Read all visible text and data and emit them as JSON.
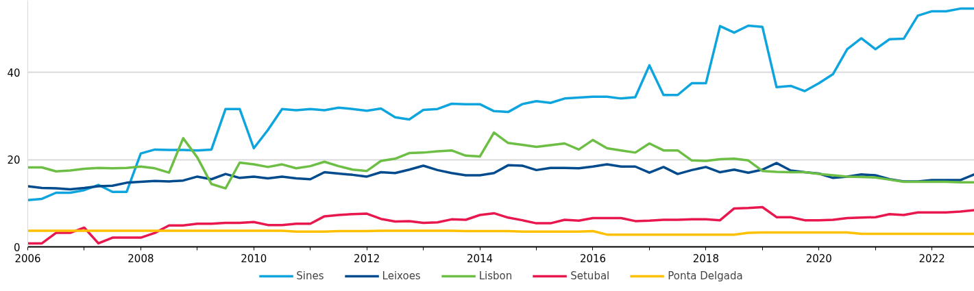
{
  "chart_data": {
    "type": "line",
    "x": [
      2006,
      2006.25,
      2006.5,
      2006.75,
      2007,
      2007.25,
      2007.5,
      2007.75,
      2008,
      2008.25,
      2008.5,
      2008.75,
      2009,
      2009.25,
      2009.5,
      2009.75,
      2010,
      2010.25,
      2010.5,
      2010.75,
      2011,
      2011.25,
      2011.5,
      2011.75,
      2012,
      2012.25,
      2012.5,
      2012.75,
      2013,
      2013.25,
      2013.5,
      2013.75,
      2014,
      2014.25,
      2014.5,
      2014.75,
      2015,
      2015.25,
      2015.5,
      2015.75,
      2016,
      2016.25,
      2016.5,
      2016.75,
      2017,
      2017.25,
      2017.5,
      2017.75,
      2018,
      2018.25,
      2018.5,
      2018.75,
      2019,
      2019.25,
      2019.5,
      2019.75,
      2020,
      2020.25,
      2020.5,
      2020.75,
      2021,
      2021.25,
      2021.5,
      2021.75,
      2022,
      2022.25,
      2022.5,
      2022.75
    ],
    "series": [
      {
        "name": "Sines",
        "color": "#0ea5de",
        "values": [
          10.7,
          11.0,
          12.4,
          12.4,
          13.0,
          14.2,
          12.6,
          12.6,
          21.4,
          22.3,
          22.2,
          22.2,
          22.1,
          22.3,
          31.6,
          31.6,
          22.6,
          26.8,
          31.6,
          31.3,
          31.6,
          31.3,
          31.9,
          31.6,
          31.2,
          31.7,
          29.7,
          29.2,
          31.4,
          31.6,
          32.8,
          32.7,
          32.7,
          31.1,
          30.9,
          32.7,
          33.4,
          33.0,
          34.0,
          34.2,
          34.4,
          34.4,
          34.0,
          34.3,
          41.6,
          34.8,
          34.8,
          37.5,
          37.5,
          50.6,
          49.1,
          50.7,
          50.4,
          36.6,
          36.9,
          35.7,
          37.5,
          39.6,
          45.3,
          47.8,
          45.3,
          47.6,
          47.7,
          53.0,
          54.0,
          54.0,
          54.6,
          54.6
        ]
      },
      {
        "name": "Leixoes",
        "color": "#004b8d",
        "values": [
          13.9,
          13.5,
          13.4,
          13.2,
          13.5,
          13.9,
          14.0,
          14.7,
          14.9,
          15.1,
          15.0,
          15.2,
          16.1,
          15.5,
          16.7,
          15.8,
          16.1,
          15.7,
          16.1,
          15.7,
          15.5,
          17.1,
          16.8,
          16.5,
          16.1,
          17.1,
          16.9,
          17.7,
          18.6,
          17.6,
          16.9,
          16.4,
          16.4,
          16.9,
          18.7,
          18.6,
          17.6,
          18.1,
          18.1,
          18.0,
          18.4,
          18.9,
          18.4,
          18.4,
          17.0,
          18.3,
          16.7,
          17.6,
          18.3,
          17.1,
          17.7,
          17.0,
          17.7,
          19.2,
          17.5,
          17.1,
          16.8,
          15.8,
          16.1,
          16.6,
          16.4,
          15.5,
          15.0,
          15.0,
          15.3,
          15.3,
          15.3,
          16.6
        ]
      },
      {
        "name": "Lisbon",
        "color": "#6cbe45",
        "values": [
          18.2,
          18.2,
          17.3,
          17.5,
          17.9,
          18.1,
          18.0,
          18.1,
          18.4,
          18.0,
          17.0,
          24.9,
          20.5,
          14.4,
          13.4,
          19.3,
          18.9,
          18.3,
          18.9,
          18.0,
          18.5,
          19.5,
          18.5,
          17.7,
          17.4,
          19.7,
          20.2,
          21.5,
          21.6,
          21.9,
          22.1,
          20.9,
          20.7,
          26.2,
          23.8,
          23.4,
          22.9,
          23.3,
          23.7,
          22.3,
          24.5,
          22.6,
          22.1,
          21.6,
          23.7,
          22.1,
          22.1,
          19.8,
          19.7,
          20.1,
          20.2,
          19.8,
          17.4,
          17.2,
          17.1,
          17.1,
          16.7,
          16.4,
          16.1,
          16.0,
          15.9,
          15.4,
          14.9,
          14.9,
          14.9,
          14.9,
          14.8,
          14.8
        ]
      },
      {
        "name": "Setubal",
        "color": "#e8174d",
        "values": [
          0.8,
          0.8,
          3.2,
          3.2,
          4.4,
          0.8,
          2.1,
          2.1,
          2.1,
          3.2,
          4.9,
          4.9,
          5.3,
          5.3,
          5.5,
          5.5,
          5.7,
          5.0,
          5.0,
          5.3,
          5.3,
          7.0,
          7.3,
          7.5,
          7.6,
          6.4,
          5.8,
          5.9,
          5.5,
          5.6,
          6.3,
          6.2,
          7.3,
          7.7,
          6.7,
          6.1,
          5.4,
          5.4,
          6.2,
          6.0,
          6.6,
          6.6,
          6.6,
          5.9,
          6.0,
          6.2,
          6.2,
          6.3,
          6.3,
          6.1,
          8.8,
          8.9,
          9.1,
          6.8,
          6.8,
          6.1,
          6.1,
          6.2,
          6.6,
          6.7,
          6.8,
          7.5,
          7.3,
          7.9,
          7.9,
          7.9,
          8.1,
          8.4
        ]
      },
      {
        "name": "Ponta Delgada",
        "color": "#ffc000",
        "values": [
          3.7,
          3.7,
          3.7,
          3.7,
          3.7,
          3.7,
          3.7,
          3.7,
          3.7,
          3.7,
          3.7,
          3.7,
          3.7,
          3.7,
          3.7,
          3.7,
          3.7,
          3.7,
          3.7,
          3.5,
          3.5,
          3.5,
          3.6,
          3.6,
          3.6,
          3.7,
          3.7,
          3.7,
          3.7,
          3.7,
          3.7,
          3.6,
          3.6,
          3.6,
          3.6,
          3.5,
          3.5,
          3.5,
          3.5,
          3.5,
          3.6,
          2.8,
          2.8,
          2.8,
          2.8,
          2.8,
          2.8,
          2.8,
          2.8,
          2.8,
          2.8,
          3.2,
          3.3,
          3.3,
          3.3,
          3.3,
          3.3,
          3.3,
          3.3,
          3.0,
          3.0,
          3.0,
          3.0,
          3.0,
          3.0,
          3.0,
          3.0,
          3.0
        ]
      }
    ],
    "xlim": [
      2006,
      2022.75
    ],
    "xticks": [
      2006,
      {
        "value": 2007,
        "label": null
      },
      2008,
      {
        "value": 2009,
        "label": null
      },
      2010,
      {
        "value": 2011,
        "label": null
      },
      2012,
      {
        "value": 2013,
        "label": null
      },
      2014,
      {
        "value": 2015,
        "label": null
      },
      2016,
      {
        "value": 2017,
        "label": null
      },
      2018,
      {
        "value": 2019,
        "label": null
      },
      2020,
      {
        "value": 2021,
        "label": null
      },
      2022
    ],
    "ylim": [
      0,
      56.5
    ],
    "yticks": [
      0,
      20,
      40
    ],
    "grid": "y",
    "legend": "bottom",
    "marker": "none",
    "line_style": "solid"
  }
}
